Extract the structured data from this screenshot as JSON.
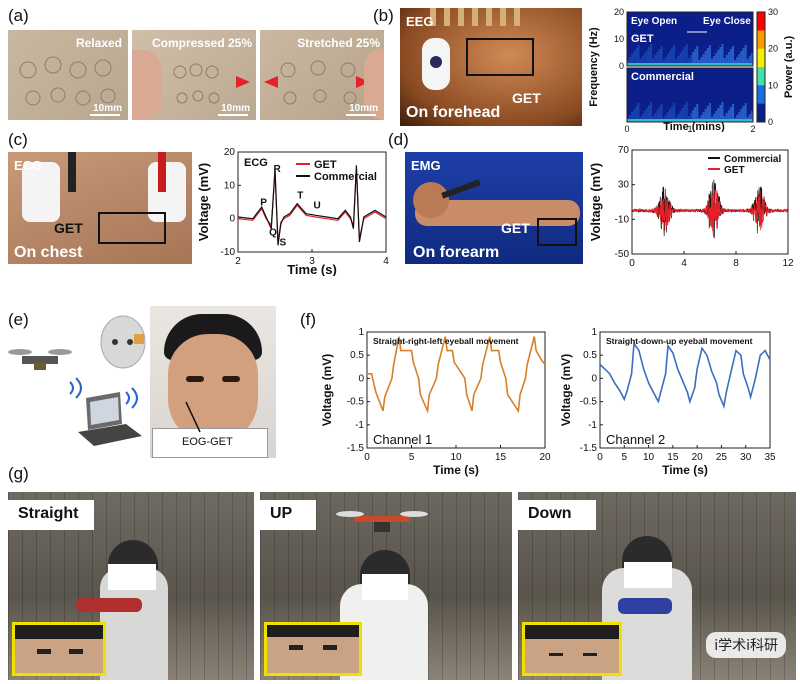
{
  "panels": {
    "a": {
      "letter": "(a)",
      "labels": [
        "Relaxed",
        "Compressed 25%",
        "Stretched 25%"
      ],
      "scale": "10mm"
    },
    "b": {
      "letter": "(b)",
      "tag": "EEG",
      "get": "GET",
      "location": "On forehead"
    },
    "c": {
      "letter": "(c)",
      "tag": "ECG",
      "get": "GET",
      "location": "On chest"
    },
    "d": {
      "letter": "(d)",
      "tag": "EMG",
      "get": "GET",
      "location": "On forearm"
    },
    "e": {
      "letter": "(e)",
      "label": "EOG-GET"
    },
    "f": {
      "letter": "(f)"
    },
    "g": {
      "letter": "(g)",
      "labels": [
        "Straight",
        "UP",
        "Down"
      ]
    }
  },
  "watermark": "i学术i科研",
  "chart_data": [
    {
      "id": "eeg-spectrogram",
      "type": "heatmap",
      "ylabel": "Frequency (Hz)",
      "xlabel": "Time (mins)",
      "xlim": [
        0,
        2
      ],
      "xticks": [
        0,
        1,
        2
      ],
      "ylim": [
        0,
        20
      ],
      "yticks": [
        0,
        10,
        20
      ],
      "rows": [
        "GET",
        "Commercial"
      ],
      "annotations": [
        "Eye Open",
        "Eye Close"
      ],
      "colorbar": {
        "label": "Power (a.u.)",
        "min": 0,
        "max": 30,
        "ticks": [
          0,
          10,
          20,
          30
        ]
      }
    },
    {
      "id": "ecg",
      "type": "line",
      "title": "ECG",
      "xlabel": "Time (s)",
      "ylabel": "Voltage (mV)",
      "xlim": [
        2,
        4
      ],
      "xticks": [
        2,
        3,
        4
      ],
      "ylim": [
        -10,
        20
      ],
      "yticks": [
        -10,
        0,
        10,
        20
      ],
      "annotations": [
        "P",
        "R",
        "Q",
        "S",
        "T",
        "U"
      ],
      "series": [
        {
          "name": "GET",
          "color": "#e8202a",
          "x": [
            2.0,
            2.2,
            2.32,
            2.38,
            2.45,
            2.5,
            2.54,
            2.58,
            2.62,
            2.7,
            2.8,
            2.92,
            3.05,
            3.2,
            3.35,
            3.45,
            3.52,
            3.56,
            3.6,
            3.64,
            3.7,
            3.85,
            4.0
          ],
          "y": [
            0,
            -0.5,
            3,
            0,
            -2,
            14,
            -7,
            -1,
            0,
            1,
            4,
            1,
            0.5,
            0,
            -0.5,
            2,
            0,
            -2,
            15,
            -6,
            0,
            2,
            0
          ]
        },
        {
          "name": "Commercial",
          "color": "#111111",
          "x": [
            2.0,
            2.2,
            2.32,
            2.38,
            2.45,
            2.5,
            2.54,
            2.58,
            2.62,
            2.7,
            2.8,
            2.92,
            3.05,
            3.2,
            3.35,
            3.45,
            3.52,
            3.56,
            3.6,
            3.64,
            3.7,
            3.85,
            4.0
          ],
          "y": [
            0.5,
            0,
            3.5,
            0.5,
            -3,
            15,
            -8,
            -1.5,
            0.5,
            1.5,
            4.5,
            1.5,
            1,
            0.5,
            0,
            2.5,
            0.5,
            -3,
            16,
            -7,
            0.5,
            2.5,
            0.5
          ]
        }
      ]
    },
    {
      "id": "emg",
      "type": "line",
      "xlabel": "",
      "ylabel": "Voltage (mV)",
      "xlim": [
        0,
        12
      ],
      "xticks": [
        0,
        4,
        8,
        12
      ],
      "ylim": [
        -50,
        70
      ],
      "yticks": [
        -50,
        -10,
        30,
        70
      ],
      "series": [
        {
          "name": "Commercial",
          "color": "#111111",
          "bursts": [
            {
              "t": 2.5,
              "amp": 28
            },
            {
              "t": 6.3,
              "amp": 38
            },
            {
              "t": 9.8,
              "amp": 30
            }
          ]
        },
        {
          "name": "GET",
          "color": "#e8202a",
          "bursts": [
            {
              "t": 2.5,
              "amp": 22
            },
            {
              "t": 6.3,
              "amp": 30
            },
            {
              "t": 9.8,
              "amp": 24
            }
          ]
        }
      ]
    },
    {
      "id": "eog-ch1",
      "type": "line",
      "title": "Straight-right-left eyeball movement",
      "subtitle": "Channel 1",
      "xlabel": "Time (s)",
      "ylabel": "Voltage (mV)",
      "xlim": [
        0,
        20
      ],
      "xticks": [
        0,
        5,
        10,
        15,
        20
      ],
      "ylim": [
        -1.5,
        1
      ],
      "yticks": [
        -1.5,
        -1,
        -0.5,
        0,
        0.5,
        1
      ],
      "series": [
        {
          "name": "",
          "color": "#d6802a",
          "x": [
            0,
            0.5,
            1,
            1.8,
            2,
            2.8,
            3,
            3.6,
            3.8,
            5,
            5.2,
            5.8,
            6,
            6.8,
            7,
            7.8,
            8,
            8.8,
            9,
            9.6,
            9.8,
            11,
            11.2,
            11.8,
            12,
            12.8,
            13,
            13.8,
            14,
            14.8,
            15,
            15.6,
            15.8,
            17,
            17.2,
            17.8,
            18,
            18.8,
            19,
            19.6,
            20
          ],
          "y": [
            0.1,
            0.1,
            -0.3,
            -0.7,
            -0.4,
            0,
            0.3,
            0.9,
            0.6,
            0.6,
            0.35,
            0,
            -0.35,
            -0.7,
            -0.35,
            0,
            0.3,
            0.9,
            0.6,
            0.6,
            0.35,
            0,
            -0.35,
            -0.7,
            -0.35,
            0,
            0.3,
            0.9,
            0.6,
            0.6,
            0.35,
            0,
            -0.35,
            -0.7,
            -0.35,
            0,
            0.3,
            0.9,
            0.6,
            0.4,
            0.3
          ]
        }
      ]
    },
    {
      "id": "eog-ch2",
      "type": "line",
      "title": "Straight-down-up eyeball movement",
      "subtitle": "Channel 2",
      "xlabel": "Time (s)",
      "ylabel": "Voltage (mV)",
      "xlim": [
        0,
        35
      ],
      "xticks": [
        0,
        5,
        10,
        15,
        20,
        25,
        30,
        35
      ],
      "ylim": [
        -1.5,
        1
      ],
      "yticks": [
        -1.5,
        -1,
        -0.5,
        0,
        0.5,
        1
      ],
      "series": [
        {
          "name": "",
          "color": "#3a6fc0",
          "x": [
            0,
            1,
            2,
            3,
            4,
            5,
            5.5,
            6.5,
            7,
            8,
            9,
            10,
            11,
            12,
            12.5,
            13.5,
            14,
            15,
            16,
            17,
            18,
            18.5,
            19.5,
            20,
            21,
            22,
            23,
            24,
            24.5,
            25.5,
            26,
            27,
            28,
            29,
            29.5,
            30.5,
            31,
            32,
            33,
            34,
            35
          ],
          "y": [
            0.3,
            0.2,
            0.1,
            -0.1,
            -0.25,
            -0.45,
            -0.3,
            0.1,
            0.75,
            0.6,
            0.2,
            -0.1,
            -0.3,
            -0.5,
            -0.3,
            0.1,
            0.7,
            0.55,
            0.2,
            -0.05,
            -0.3,
            -0.5,
            -0.2,
            0.2,
            0.65,
            0.5,
            0.15,
            -0.1,
            -0.35,
            -0.6,
            -0.3,
            0.15,
            0.6,
            0.5,
            0.1,
            -0.2,
            -0.4,
            0.0,
            0.5,
            0.6,
            0.4
          ]
        }
      ]
    }
  ]
}
